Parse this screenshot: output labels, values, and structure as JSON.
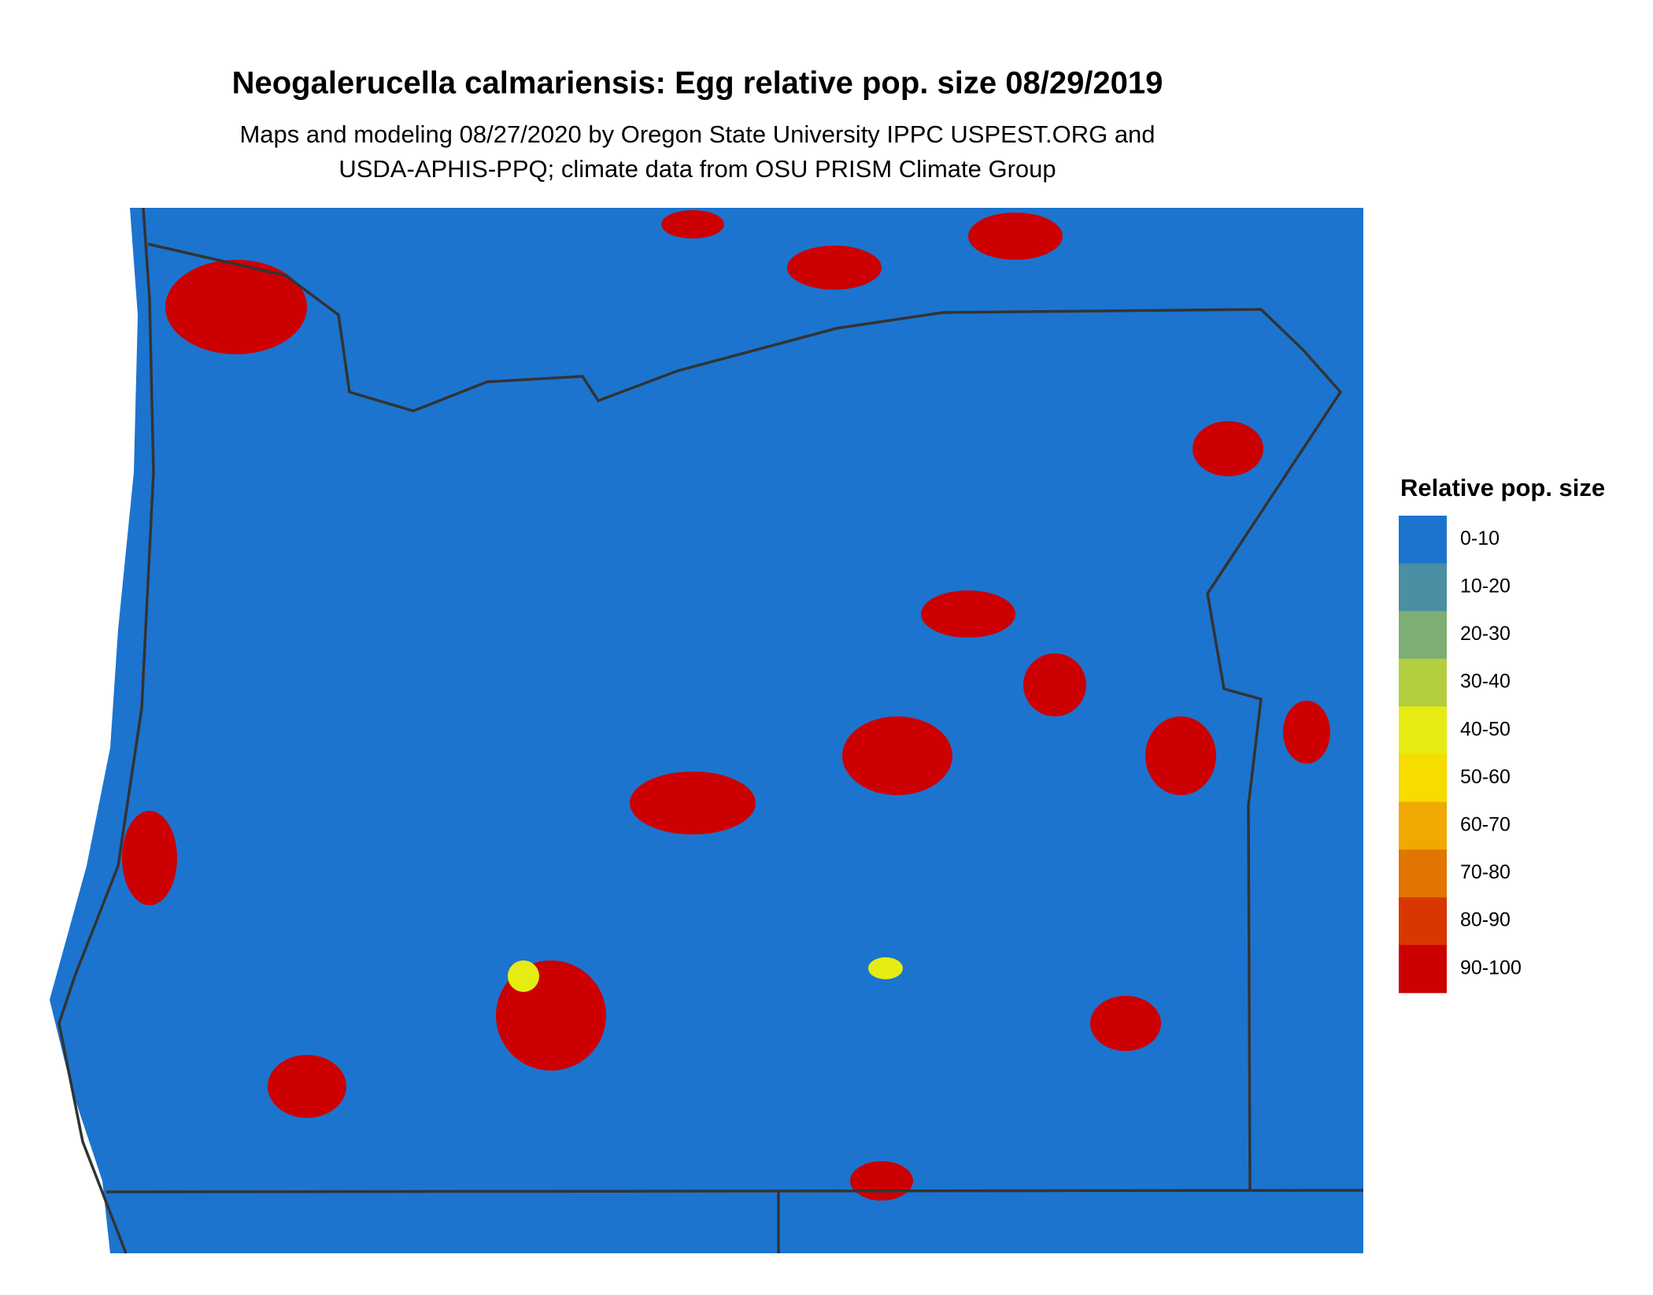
{
  "header": {
    "title": "Neogalerucella calmariensis: Egg relative pop. size 08/29/2019",
    "subtitle_lines": [
      "Maps and modeling 08/27/2020 by Oregon State University IPPC USPEST.ORG and",
      "USDA-APHIS-PPQ; climate data from OSU PRISM Climate Group"
    ]
  },
  "legend": {
    "title": "Relative pop. size",
    "items": [
      {
        "label": "0-10",
        "color": "#1c74cf"
      },
      {
        "label": "10-20",
        "color": "#4a8fa3"
      },
      {
        "label": "20-30",
        "color": "#7daf72"
      },
      {
        "label": "30-40",
        "color": "#b3cf3e"
      },
      {
        "label": "40-50",
        "color": "#e6ec12"
      },
      {
        "label": "50-60",
        "color": "#f7dc00"
      },
      {
        "label": "60-70",
        "color": "#efa900"
      },
      {
        "label": "70-80",
        "color": "#e27400"
      },
      {
        "label": "80-90",
        "color": "#d83800"
      },
      {
        "label": "90-100",
        "color": "#cc0000"
      }
    ]
  }
}
